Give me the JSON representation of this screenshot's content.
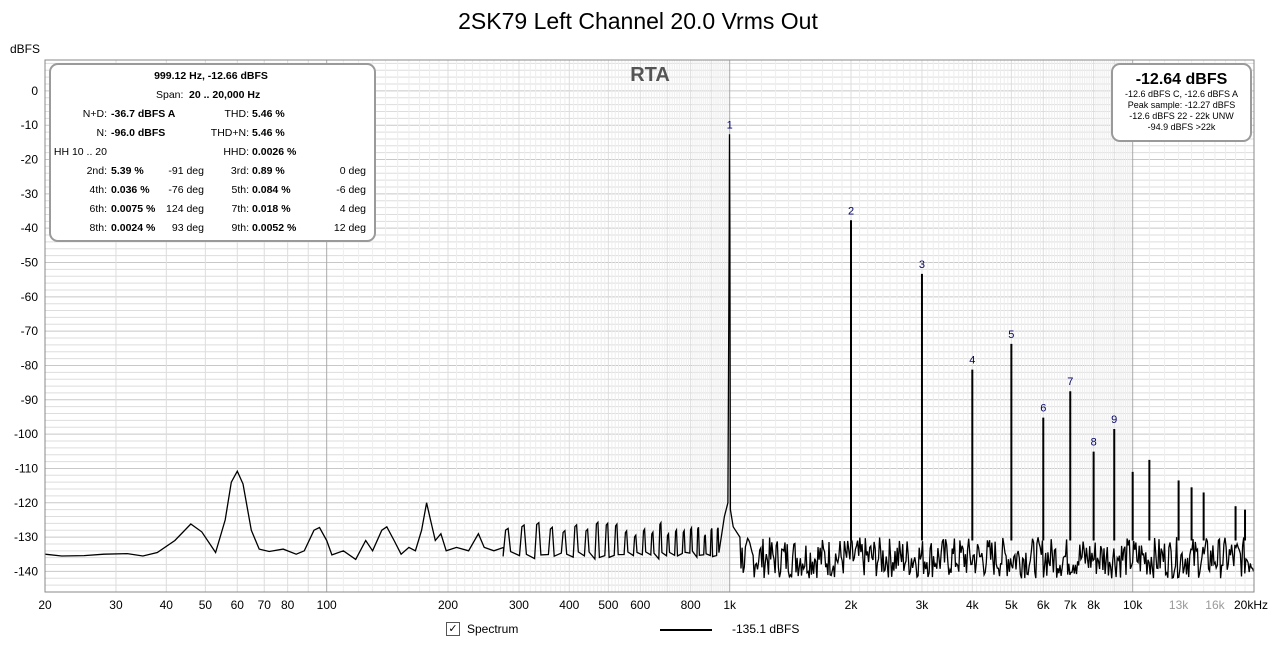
{
  "title": "2SK79 Left Channel 20.0 Vrms Out",
  "chart_data": {
    "type": "line",
    "title": "2SK79 Left Channel 20.0 Vrms Out",
    "inner_title": "RTA",
    "ylabel": "dBFS",
    "xlabel": "",
    "x_scale": "log",
    "xlim": [
      20,
      20000
    ],
    "ylim": [
      -146,
      9
    ],
    "yticks": [
      0,
      -10,
      -20,
      -30,
      -40,
      -50,
      -60,
      -70,
      -80,
      -90,
      -100,
      -110,
      -120,
      -130,
      -140
    ],
    "xticks": [
      {
        "v": 20,
        "l": "20"
      },
      {
        "v": 30,
        "l": "30"
      },
      {
        "v": 40,
        "l": "40"
      },
      {
        "v": 50,
        "l": "50"
      },
      {
        "v": 60,
        "l": "60"
      },
      {
        "v": 70,
        "l": "70"
      },
      {
        "v": 80,
        "l": "80"
      },
      {
        "v": 100,
        "l": "100"
      },
      {
        "v": 200,
        "l": "200"
      },
      {
        "v": 300,
        "l": "300"
      },
      {
        "v": 400,
        "l": "400"
      },
      {
        "v": 500,
        "l": "500"
      },
      {
        "v": 600,
        "l": "600"
      },
      {
        "v": 800,
        "l": "800"
      },
      {
        "v": 1000,
        "l": "1k"
      },
      {
        "v": 2000,
        "l": "2k"
      },
      {
        "v": 3000,
        "l": "3k"
      },
      {
        "v": 4000,
        "l": "4k"
      },
      {
        "v": 5000,
        "l": "5k"
      },
      {
        "v": 6000,
        "l": "6k"
      },
      {
        "v": 7000,
        "l": "7k"
      },
      {
        "v": 8000,
        "l": "8k"
      },
      {
        "v": 10000,
        "l": "10k"
      },
      {
        "v": 13000,
        "l": "13k",
        "grey": true
      },
      {
        "v": 16000,
        "l": "16k",
        "grey": true
      },
      {
        "v": 20000,
        "l": "20kHz"
      }
    ],
    "grid": true,
    "series": [
      {
        "name": "Spectrum",
        "legend_value": "-135.1 dBFS",
        "color": "#000000",
        "noise_floor_db": -135.1,
        "harmonics": [
          {
            "label": "1",
            "hz": 1000,
            "db": -12.64
          },
          {
            "label": "2",
            "hz": 2000,
            "db": -37.7
          },
          {
            "label": "3",
            "hz": 3000,
            "db": -53.3
          },
          {
            "label": "4",
            "hz": 4000,
            "db": -81.2
          },
          {
            "label": "5",
            "hz": 5000,
            "db": -73.7
          },
          {
            "label": "6",
            "hz": 6000,
            "db": -95.2
          },
          {
            "label": "7",
            "hz": 7000,
            "db": -87.5
          },
          {
            "label": "8",
            "hz": 8000,
            "db": -105.1
          },
          {
            "label": "9",
            "hz": 9000,
            "db": -98.5
          }
        ],
        "other_peaks": [
          {
            "hz": 10000,
            "db": -111
          },
          {
            "hz": 11000,
            "db": -107.5
          },
          {
            "hz": 13000,
            "db": -113.5
          },
          {
            "hz": 14000,
            "db": -115.5
          },
          {
            "hz": 15000,
            "db": -117
          },
          {
            "hz": 18000,
            "db": -121
          },
          {
            "hz": 19000,
            "db": -122
          }
        ],
        "low_freq_points": [
          [
            20,
            -135
          ],
          [
            22,
            -135.5
          ],
          [
            25,
            -135.4
          ],
          [
            28,
            -135
          ],
          [
            32,
            -134.8
          ],
          [
            35,
            -135.5
          ],
          [
            38,
            -134.5
          ],
          [
            42,
            -131
          ],
          [
            46,
            -126.2
          ],
          [
            49,
            -128.5
          ],
          [
            53,
            -134.5
          ],
          [
            56,
            -125
          ],
          [
            58,
            -114
          ],
          [
            60,
            -110.8
          ],
          [
            62,
            -114.5
          ],
          [
            65,
            -128
          ],
          [
            68,
            -133.5
          ],
          [
            72,
            -134.2
          ],
          [
            78,
            -133.5
          ],
          [
            84,
            -135
          ],
          [
            88,
            -134
          ],
          [
            93,
            -128
          ],
          [
            96,
            -127.2
          ],
          [
            100,
            -131
          ],
          [
            103,
            -135.2
          ],
          [
            110,
            -134
          ],
          [
            118,
            -136.5
          ],
          [
            125,
            -131
          ],
          [
            130,
            -134
          ],
          [
            137,
            -128
          ],
          [
            141,
            -127
          ],
          [
            147,
            -131
          ],
          [
            153,
            -135
          ],
          [
            160,
            -133
          ],
          [
            166,
            -134
          ],
          [
            172,
            -128
          ],
          [
            177,
            -120
          ],
          [
            181,
            -125
          ],
          [
            186,
            -131
          ],
          [
            192,
            -129
          ],
          [
            198,
            -134
          ],
          [
            210,
            -133
          ],
          [
            225,
            -134
          ],
          [
            238,
            -129
          ],
          [
            246,
            -133
          ],
          [
            260,
            -134
          ],
          [
            275,
            -133
          ]
        ]
      }
    ]
  },
  "stats_panel": {
    "header1": "999.12 Hz, -12.66 dBFS",
    "span_label": "Span:",
    "span_value": "20 .. 20,000 Hz",
    "rows": [
      {
        "l1": "N+D:",
        "v1": "-36.7 dBFS A",
        "d1": "",
        "l2": "THD:",
        "v2": "5.46 %",
        "d2": ""
      },
      {
        "l1": "N:",
        "v1": "-96.0 dBFS",
        "d1": "",
        "l2": "THD+N:",
        "v2": "5.46 %",
        "d2": ""
      },
      {
        "l1": "HH 10 .. 20",
        "v1": "",
        "d1": "",
        "l2": "HHD:",
        "v2": "0.0026 %",
        "d2": ""
      },
      {
        "l1": "2nd:",
        "v1": "5.39 %",
        "d1": "-91 deg",
        "l2": "3rd:",
        "v2": "0.89 %",
        "d2": "0 deg"
      },
      {
        "l1": "4th:",
        "v1": "0.036 %",
        "d1": "-76 deg",
        "l2": "5th:",
        "v2": "0.084 %",
        "d2": "-6 deg"
      },
      {
        "l1": "6th:",
        "v1": "0.0075 %",
        "d1": "124 deg",
        "l2": "7th:",
        "v2": "0.018 %",
        "d2": "4 deg"
      },
      {
        "l1": "8th:",
        "v1": "0.0024 %",
        "d1": "93 deg",
        "l2": "9th:",
        "v2": "0.0052 %",
        "d2": "12 deg"
      }
    ]
  },
  "level_panel": {
    "big": "-12.64 dBFS",
    "lines": [
      "-12.6 dBFS C, -12.6 dBFS A",
      "Peak sample: -12.27 dBFS",
      "-12.6 dBFS 22 - 22k UNW",
      "-94.9 dBFS >22k"
    ]
  },
  "legend": {
    "checkbox_checked": true,
    "checkbox_glyph": "✓",
    "label": "Spectrum",
    "value": "-135.1 dBFS"
  },
  "colors": {
    "grid_minor": "#dddddd",
    "grid_major": "#aaaaaa",
    "plot_border": "#888888",
    "tick_grey": "#999999"
  }
}
